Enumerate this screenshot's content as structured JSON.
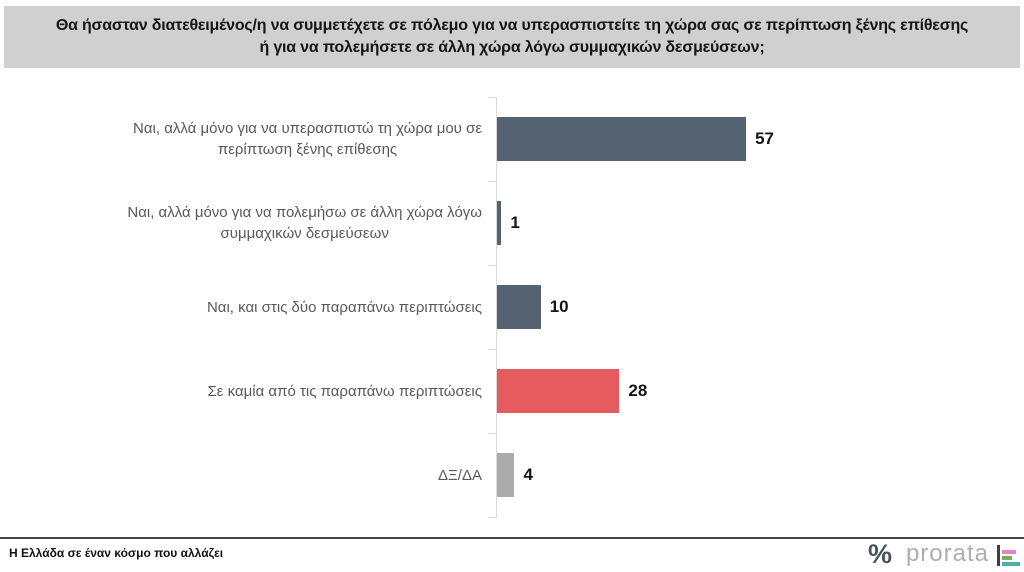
{
  "title": {
    "line1": "Θα ήσασταν διατεθειμένος/η να συμμετέχετε σε πόλεμο για να υπερασπιστείτε τη χώρα σας σε περίπτωση ξένης επίθεσης",
    "line2": "ή  για να πολεμήσετε σε άλλη χώρα λόγω συμμαχικών δεσμεύσεων;"
  },
  "chart_data": {
    "type": "bar",
    "orientation": "horizontal",
    "categories": [
      "Ναι, αλλά μόνο για να υπερασπιστώ τη χώρα μου σε\nπερίπτωση ξένης επίθεσης",
      "Ναι, αλλά μόνο για να πολεμήσω σε άλλη χώρα λόγω\nσυμμαχικών δεσμεύσεων",
      "Ναι, και στις δύο παραπάνω περιπτώσεις",
      "Σε καμία από τις παραπάνω περιπτώσεις",
      "ΔΞ/ΔΑ"
    ],
    "values": [
      57,
      1,
      10,
      28,
      4
    ],
    "bar_colors": [
      "#566372",
      "#566372",
      "#566372",
      "#e65c5e",
      "#ababab"
    ],
    "value_labels": [
      "57",
      "1",
      "10",
      "28",
      "4"
    ],
    "xlim": [
      0,
      60
    ],
    "grid": false,
    "legend": false,
    "axis_color": "#d9d9d9",
    "label_color": "#595959"
  },
  "footer": {
    "caption": "Η Ελλάδα σε έναν κόσμο που αλλάζει",
    "percent_symbol": "%",
    "brand": "prorata"
  }
}
